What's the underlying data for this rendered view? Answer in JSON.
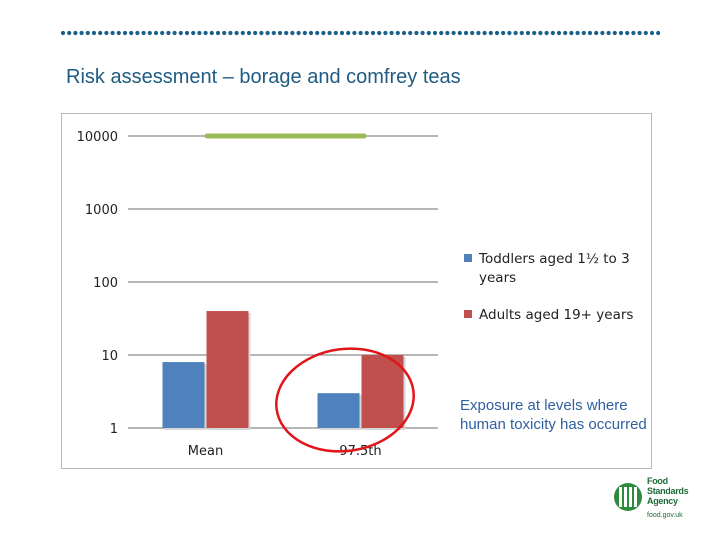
{
  "slide": {
    "title": "Risk assessment – borage and comfrey teas"
  },
  "annotation": {
    "text": "Exposure at levels where human toxicity has occurred"
  },
  "logo": {
    "line1": "Food",
    "line2": "Standards",
    "line3": "Agency",
    "url": "food.gov.uk"
  },
  "colors": {
    "title": "#1f5b82",
    "toddlers": "#4f81bd",
    "adults": "#c0504d",
    "threshold_line": "#9bbb59",
    "circle": "#e0161b",
    "annotation": "#3060a0",
    "dots": "#1a5f8a"
  },
  "chart_data": {
    "type": "bar",
    "y_scale": "log",
    "ylim": [
      1,
      10000
    ],
    "y_ticks": [
      "1",
      "10",
      "100",
      "1000",
      "10000"
    ],
    "categories": [
      "Mean",
      "97.5th"
    ],
    "series": [
      {
        "name": "Toddlers aged 1½ to 3 years",
        "values": [
          8,
          3
        ]
      },
      {
        "name": "Adults aged 19+ years",
        "values": [
          40,
          10
        ]
      }
    ],
    "threshold": {
      "value": 10000
    },
    "legend_position": "right",
    "grid": true,
    "highlight_category": "97.5th"
  }
}
